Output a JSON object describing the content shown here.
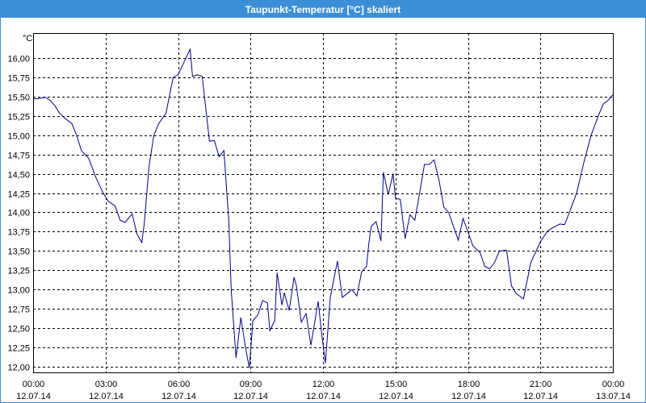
{
  "window": {
    "title": "Taupunkt-Temperatur [°C] skaliert"
  },
  "chart_data": {
    "type": "line",
    "title": "Taupunkt-Temperatur [°C] skaliert",
    "ylabel": "°C",
    "xlabel": "",
    "ylim": [
      11.93,
      16.32
    ],
    "yticks": [
      "12,00",
      "12,25",
      "12,50",
      "12,75",
      "13,00",
      "13,25",
      "13,50",
      "13,75",
      "14,00",
      "14,25",
      "14,50",
      "14,75",
      "15,00",
      "15,25",
      "15,50",
      "15,75",
      "16,00"
    ],
    "xticks": [
      {
        "time": "00:00",
        "date": "12.07.14"
      },
      {
        "time": "03:00",
        "date": "12.07.14"
      },
      {
        "time": "06:00",
        "date": "12.07.14"
      },
      {
        "time": "09:00",
        "date": "12.07.14"
      },
      {
        "time": "12:00",
        "date": "12.07.14"
      },
      {
        "time": "15:00",
        "date": "12.07.14"
      },
      {
        "time": "18:00",
        "date": "12.07.14"
      },
      {
        "time": "21:00",
        "date": "12.07.14"
      },
      {
        "time": "00:00",
        "date": "13.07.14"
      }
    ],
    "x_range_hours": [
      0,
      24
    ],
    "grid": true,
    "series_color": "#00008b",
    "series": [
      {
        "x": [
          0,
          0.2,
          0.5,
          0.7,
          0.9,
          1.1,
          1.3,
          1.6,
          1.8,
          2.0,
          2.3,
          2.6,
          2.9,
          3.1,
          3.4,
          3.6,
          3.8,
          4.1,
          4.3,
          4.5,
          4.6,
          4.8,
          5.0,
          5.2,
          5.5,
          5.8,
          6.0,
          6.3,
          6.5,
          6.6,
          6.8,
          7.0,
          7.3,
          7.5,
          7.7,
          7.9,
          8.1,
          8.2,
          8.4,
          8.6,
          8.8,
          8.95,
          9.1,
          9.3,
          9.5,
          9.7,
          9.8,
          10.0,
          10.1,
          10.3,
          10.4,
          10.6,
          10.8,
          10.9,
          11.1,
          11.3,
          11.5,
          11.8,
          11.95,
          12.1,
          12.3,
          12.6,
          12.8,
          13.0,
          13.2,
          13.4,
          13.6,
          13.8,
          13.9,
          14.0,
          14.2,
          14.4,
          14.5,
          14.7,
          14.9,
          15.0,
          15.2,
          15.4,
          15.6,
          15.8,
          16.0,
          16.2,
          16.4,
          16.6,
          16.8,
          17.0,
          17.2,
          17.4,
          17.6,
          17.8,
          18.0,
          18.2,
          18.5,
          18.7,
          18.9,
          19.1,
          19.3,
          19.6,
          19.8,
          20.0,
          20.3,
          20.6,
          21.0,
          21.3,
          21.5,
          21.8,
          22.0,
          22.2,
          22.5,
          22.8,
          23.1,
          23.4,
          23.6,
          23.8,
          24.0
        ],
        "y": [
          15.47,
          15.47,
          15.49,
          15.45,
          15.38,
          15.28,
          15.22,
          15.15,
          15.0,
          14.8,
          14.7,
          14.45,
          14.25,
          14.15,
          14.08,
          13.9,
          13.87,
          13.98,
          13.72,
          13.61,
          13.85,
          14.6,
          15.0,
          15.15,
          15.28,
          15.75,
          15.78,
          15.98,
          16.11,
          15.76,
          15.78,
          15.76,
          14.92,
          14.93,
          14.72,
          14.8,
          13.9,
          13.0,
          12.12,
          12.64,
          12.23,
          11.99,
          12.6,
          12.67,
          12.86,
          12.83,
          12.47,
          12.6,
          13.22,
          12.8,
          12.96,
          12.73,
          13.16,
          13.05,
          12.58,
          12.69,
          12.28,
          12.85,
          12.42,
          12.05,
          12.9,
          13.37,
          12.9,
          12.95,
          13.0,
          12.92,
          13.23,
          13.3,
          13.6,
          13.82,
          13.88,
          13.63,
          14.52,
          14.23,
          14.5,
          14.18,
          14.17,
          13.66,
          13.97,
          13.9,
          14.25,
          14.62,
          14.62,
          14.68,
          14.42,
          14.07,
          14.0,
          13.82,
          13.64,
          13.92,
          13.75,
          13.57,
          13.48,
          13.3,
          13.27,
          13.35,
          13.5,
          13.51,
          13.05,
          12.95,
          12.88,
          13.35,
          13.62,
          13.76,
          13.8,
          13.85,
          13.84,
          14.0,
          14.25,
          14.65,
          15.0,
          15.25,
          15.4,
          15.45,
          15.52
        ]
      }
    ]
  }
}
